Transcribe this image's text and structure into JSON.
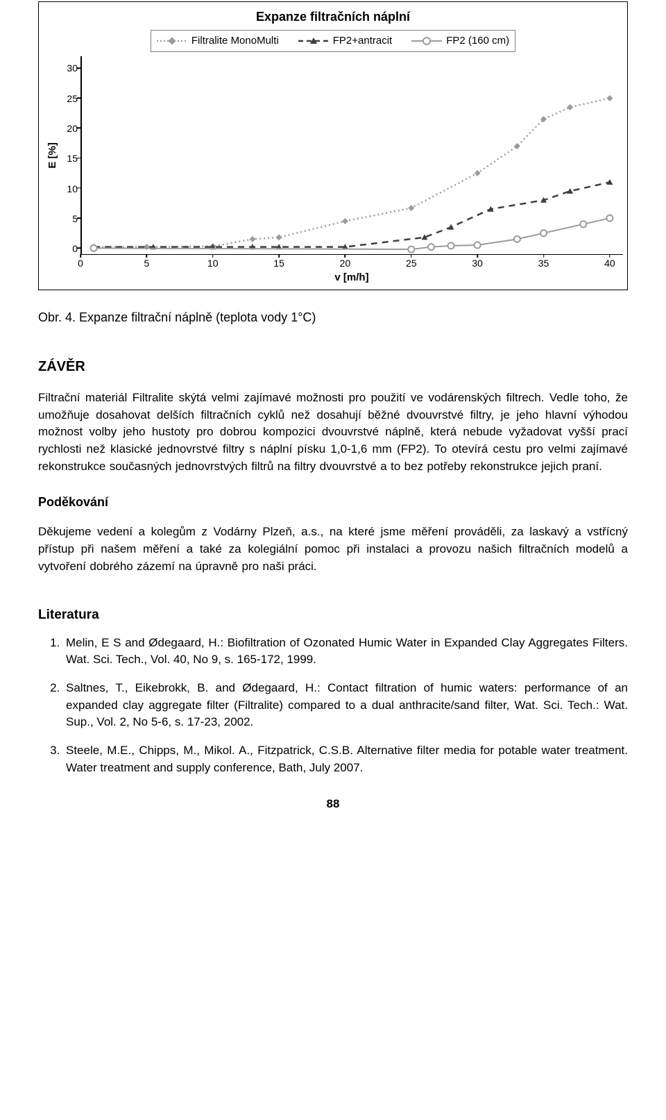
{
  "chart": {
    "title": "Expanze filtračních náplní",
    "title_fontsize": 18,
    "xlabel": "v [m/h]",
    "ylabel": "E [%]",
    "xlim": [
      0,
      41
    ],
    "ylim": [
      -1,
      32
    ],
    "xticks": [
      0,
      5,
      10,
      15,
      20,
      25,
      30,
      35,
      40
    ],
    "yticks": [
      0,
      5,
      10,
      15,
      20,
      25,
      30
    ],
    "background_color": "#ffffff",
    "axis_color": "#000000",
    "legend_border": "#808080",
    "series": [
      {
        "name": "Filtralite MonoMulti",
        "style": "dot",
        "marker": "diamond",
        "color": "#9b9b9b",
        "marker_size": 9,
        "line_width": 2.5,
        "x": [
          1,
          5,
          10,
          13,
          15,
          20,
          25,
          30,
          33,
          35,
          37,
          40
        ],
        "y": [
          0.2,
          0.2,
          0.3,
          1.5,
          1.8,
          4.5,
          6.7,
          12.5,
          17,
          21.5,
          23.5,
          25
        ]
      },
      {
        "name": "FP2+antracit",
        "style": "dash",
        "marker": "triangle",
        "color": "#3f3f3f",
        "marker_size": 9,
        "line_width": 2.5,
        "x": [
          1,
          5.5,
          10,
          13,
          15,
          20,
          26,
          28,
          31,
          35,
          37,
          40
        ],
        "y": [
          0.2,
          0.2,
          0.2,
          0.2,
          0.2,
          0.2,
          1.8,
          3.5,
          6.5,
          8,
          9.5,
          11
        ]
      },
      {
        "name": "FP2 (160 cm)",
        "style": "solid",
        "marker": "circle",
        "color": "#9b9b9b",
        "marker_size": 9,
        "line_width": 2,
        "x": [
          1,
          25,
          26.5,
          28,
          30,
          33,
          35,
          38,
          40
        ],
        "y": [
          0,
          -0.2,
          0.2,
          0.4,
          0.5,
          1.5,
          2.5,
          4,
          5
        ]
      }
    ]
  },
  "caption": "Obr. 4.  Expanze filtrační náplně (teplota vody 1°C)",
  "sections": {
    "zaver_heading": "ZÁVĚR",
    "zaver_p1": "Filtrační materiál Filtralite skýtá velmi zajímavé možnosti pro použití ve vodárenských filtrech. Vedle toho, že umožňuje dosahovat delších filtračních cyklů než dosahují běžné dvouvrstvé filtry, je jeho hlavní výhodou možnost volby jeho hustoty pro dobrou kompozici dvouvrstvé náplně, která nebude vyžadovat vyšší prací rychlosti než klasické jednovrstvé filtry s náplní písku 1,0-1,6 mm (FP2). To otevírá cestu pro velmi zajímavé rekonstrukce současných jednovrstvých filtrů na filtry dvouvrstvé a to bez potřeby rekonstrukce jejich praní.",
    "podekovani_heading": "Poděkování",
    "podekovani_p": "Děkujeme vedení a kolegům z Vodárny Plzeň, a.s., na které jsme měření prováděli, za laskavý a vstřícný přístup při našem měření a také za kolegiální pomoc při instalaci a provozu našich filtračních modelů a vytvoření dobrého zázemí na úpravně pro naši práci.",
    "lit_heading": "Literatura"
  },
  "references": [
    "Melin, E S and Ødegaard, H.: Biofiltration of Ozonated Humic Water in Expanded Clay Aggregates Filters. Wat. Sci. Tech., Vol. 40, No 9, s. 165-172, 1999.",
    "Saltnes, T., Eikebrokk, B. and Ødegaard, H.: Contact filtration of humic waters: performance of an expanded clay aggregate filter (Filtralite) compared to a dual anthracite/sand filter, Wat. Sci. Tech.: Wat. Sup., Vol. 2, No 5-6, s. 17-23, 2002.",
    "Steele, M.E., Chipps, M., Mikol. A., Fitzpatrick, C.S.B. Alternative filter media for potable water treatment. Water treatment and supply conference, Bath, July 2007."
  ],
  "page_number": "88"
}
